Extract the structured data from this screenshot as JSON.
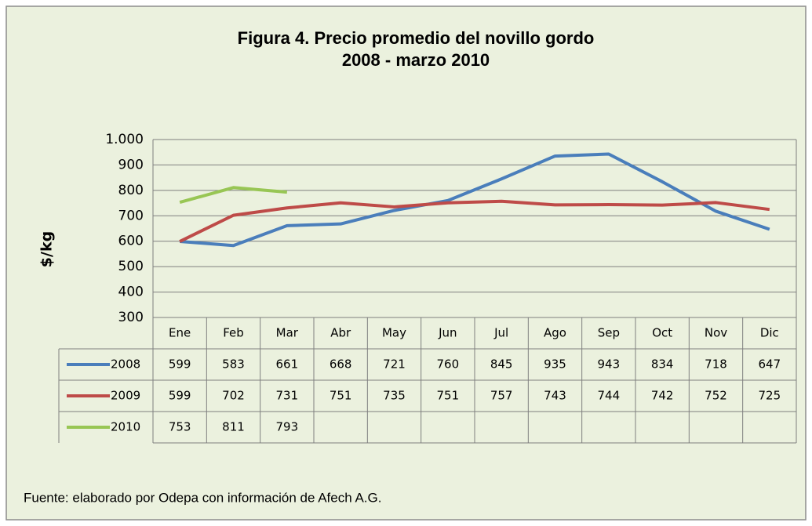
{
  "chart_data": {
    "type": "line",
    "title": "Figura 4. Precio promedio del novillo gordo",
    "subtitle": "2008 - marzo 2010",
    "y_label": "$/kg",
    "source": "Fuente: elaborado por Odepa con información de Afech A.G.",
    "categories": [
      "Ene",
      "Feb",
      "Mar",
      "Abr",
      "May",
      "Jun",
      "Jul",
      "Ago",
      "Sep",
      "Oct",
      "Nov",
      "Dic"
    ],
    "series": [
      {
        "name": "2008",
        "color": "#4a7ebb",
        "values": [
          599,
          583,
          661,
          668,
          721,
          760,
          845,
          935,
          943,
          834,
          718,
          647
        ]
      },
      {
        "name": "2009",
        "color": "#be4b48",
        "values": [
          599,
          702,
          731,
          751,
          735,
          751,
          757,
          743,
          744,
          742,
          752,
          725
        ]
      },
      {
        "name": "2010",
        "color": "#98c654",
        "values": [
          753,
          811,
          793,
          null,
          null,
          null,
          null,
          null,
          null,
          null,
          null,
          null
        ]
      }
    ],
    "ylim": [
      300,
      1000
    ],
    "yticks": [
      300,
      400,
      500,
      600,
      700,
      800,
      900,
      {
        "value": 1000,
        "label": "1.000"
      }
    ],
    "grid": true
  }
}
